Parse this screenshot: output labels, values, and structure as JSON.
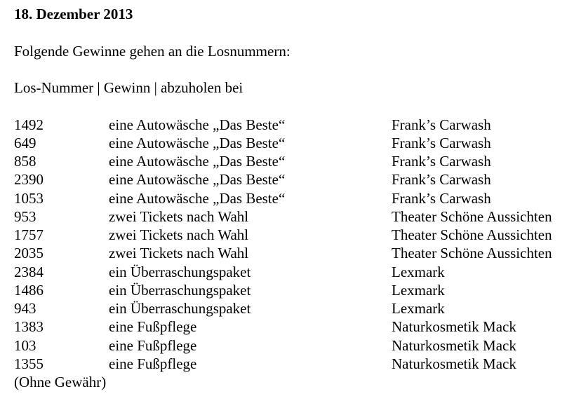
{
  "title": "18. Dezember 2013",
  "intro": "Folgende Gewinne gehen an die Losnummern:",
  "header": "Los-Nummer | Gewinn | abzuholen bei",
  "rows": [
    [
      "1492",
      "eine Autowäsche „Das Beste“",
      "Frank’s Carwash"
    ],
    [
      "649",
      "eine Autowäsche „Das Beste“",
      "Frank’s Carwash"
    ],
    [
      "858",
      "eine Autowäsche „Das Beste“",
      "Frank’s Carwash"
    ],
    [
      "2390",
      "eine Autowäsche „Das Beste“",
      "Frank’s Carwash"
    ],
    [
      "1053",
      "eine Autowäsche „Das Beste“",
      "Frank’s Carwash"
    ],
    [
      "953",
      "zwei Tickets nach Wahl",
      "Theater Schöne Aussichten"
    ],
    [
      "1757",
      "zwei Tickets nach Wahl",
      "Theater Schöne Aussichten"
    ],
    [
      "2035",
      "zwei Tickets nach Wahl",
      "Theater Schöne Aussichten"
    ],
    [
      "2384",
      "ein Überraschungspaket",
      "Lexmark"
    ],
    [
      "1486",
      "ein Überraschungspaket",
      "Lexmark"
    ],
    [
      "943",
      "ein Überraschungspaket",
      "Lexmark"
    ],
    [
      "1383",
      "eine Fußpflege",
      "Naturkosmetik Mack"
    ],
    [
      "103",
      "eine Fußpflege",
      "Naturkosmetik Mack"
    ],
    [
      "1355",
      "eine Fußpflege",
      "Naturkosmetik Mack"
    ]
  ],
  "footer": "(Ohne Gewähr)"
}
